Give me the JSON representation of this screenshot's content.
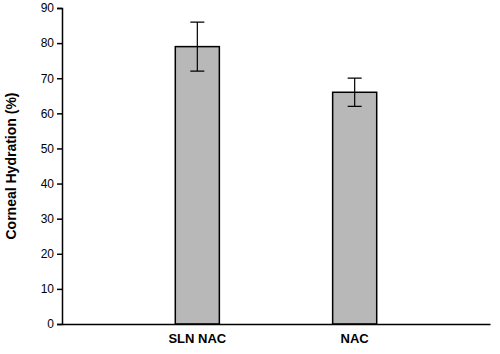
{
  "chart_data": {
    "type": "bar",
    "categories": [
      "SLN NAC",
      "NAC"
    ],
    "values": [
      79,
      66
    ],
    "errors": [
      7,
      4
    ],
    "color": "#b8b8b8",
    "y_label": "Corneal Hydration (%)",
    "ylim": [
      0,
      90
    ],
    "yticks": [
      0,
      10,
      20,
      30,
      40,
      50,
      60,
      70,
      80,
      90
    ],
    "grid": false
  }
}
